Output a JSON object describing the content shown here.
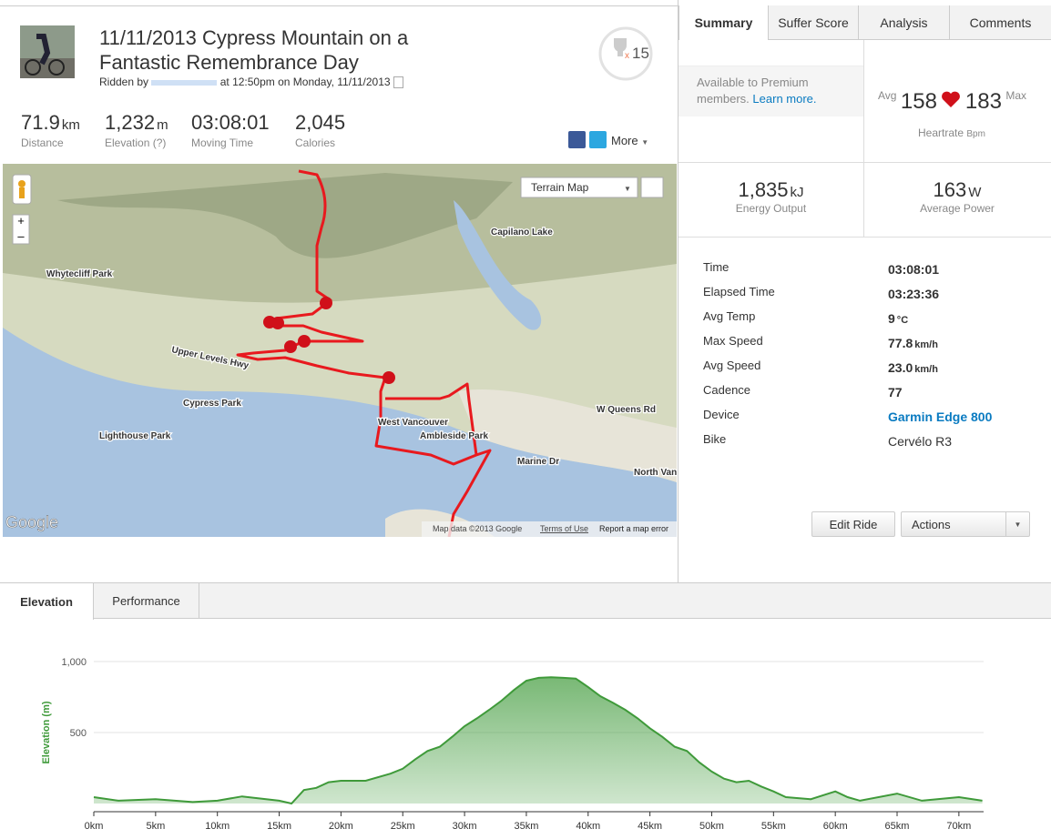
{
  "tabs": [
    "Summary",
    "Suffer Score",
    "Analysis",
    "Comments"
  ],
  "header": {
    "title": "11/11/2013 Cypress Mountain on a Fantastic Remembrance Day",
    "ridden_by": "Ridden by",
    "when": "at 12:50pm on Monday, 11/11/2013",
    "trophy_prefix": "x",
    "trophy_count": "15"
  },
  "stats": [
    {
      "value": "71.9",
      "unit": "km",
      "label": "Distance"
    },
    {
      "value": "1,232",
      "unit": "m",
      "label": "Elevation (?)"
    },
    {
      "value": "03:08:01",
      "unit": "",
      "label": "Moving Time"
    },
    {
      "value": "2,045",
      "unit": "",
      "label": "Calories"
    }
  ],
  "share_more": "More",
  "premium": {
    "text": "Available to Premium members.",
    "link": "Learn more."
  },
  "heartrate": {
    "avg_label": "Avg",
    "avg": "158",
    "max": "183",
    "max_label": "Max",
    "label": "Heartrate",
    "unit": "Bpm"
  },
  "power": [
    {
      "value": "1,835",
      "unit": "kJ",
      "label": "Energy Output"
    },
    {
      "value": "163",
      "unit": "W",
      "label": "Average Power"
    }
  ],
  "details": [
    {
      "label": "Time",
      "value": "03:08:01",
      "unit": ""
    },
    {
      "label": "Elapsed Time",
      "value": "03:23:36",
      "unit": ""
    },
    {
      "label": "Avg Temp",
      "value": "9",
      "unit": "°C"
    },
    {
      "label": "Max Speed",
      "value": "77.8",
      "unit": "km/h"
    },
    {
      "label": "Avg Speed",
      "value": "23.0",
      "unit": "km/h"
    },
    {
      "label": "Cadence",
      "value": "77",
      "unit": ""
    },
    {
      "label": "Device",
      "value": "Garmin Edge 800",
      "unit": ""
    },
    {
      "label": "Bike",
      "value": "Cervélo R3",
      "unit": ""
    }
  ],
  "buttons": {
    "edit": "Edit Ride",
    "actions": "Actions"
  },
  "map": {
    "type_selector": "Terrain Map",
    "labels": [
      "Whytecliff Park",
      "Cypress Park",
      "Lighthouse Park",
      "West Vancouver",
      "Ambleside Park",
      "North Vancouver",
      "Capilano Lake",
      "Upper Levels Hwy",
      "Marine Dr",
      "W Queens Rd"
    ],
    "google": "Google",
    "attribution": "Map data ©2013 Google",
    "terms": "Terms of Use",
    "report": "Report a map error"
  },
  "chart_tabs": [
    "Elevation",
    "Performance"
  ],
  "chart_data": {
    "type": "area",
    "y_label": "Elevation (m)",
    "color": "#3f9a3a",
    "grid": true,
    "x": [
      0,
      2,
      5,
      8,
      10,
      12,
      15,
      16,
      17,
      18,
      19,
      20,
      22,
      24,
      25,
      26,
      27,
      28,
      29,
      30,
      31,
      32,
      33,
      34,
      35,
      36,
      37,
      38,
      39,
      40,
      41,
      42,
      43,
      44,
      45,
      46,
      47,
      48,
      49,
      50,
      51,
      52,
      53,
      54,
      55,
      56,
      58,
      60,
      61,
      62,
      65,
      67,
      70,
      71.9
    ],
    "values": [
      45,
      20,
      30,
      10,
      20,
      50,
      20,
      0,
      95,
      110,
      150,
      160,
      160,
      210,
      245,
      310,
      370,
      400,
      470,
      545,
      600,
      660,
      725,
      800,
      865,
      885,
      890,
      885,
      880,
      820,
      755,
      710,
      660,
      600,
      530,
      470,
      400,
      370,
      290,
      225,
      175,
      150,
      160,
      120,
      85,
      45,
      30,
      85,
      45,
      20,
      70,
      20,
      45,
      20
    ],
    "xlim": [
      0,
      72
    ],
    "ylim": [
      0,
      1000
    ],
    "xticks": [
      {
        "value": 0,
        "label": "0km"
      },
      {
        "value": 5,
        "label": "5km"
      },
      {
        "value": 10,
        "label": "10km"
      },
      {
        "value": 15,
        "label": "15km"
      },
      {
        "value": 20,
        "label": "20km"
      },
      {
        "value": 25,
        "label": "25km"
      },
      {
        "value": 30,
        "label": "30km"
      },
      {
        "value": 35,
        "label": "35km"
      },
      {
        "value": 40,
        "label": "40km"
      },
      {
        "value": 45,
        "label": "45km"
      },
      {
        "value": 50,
        "label": "50km"
      },
      {
        "value": 55,
        "label": "55km"
      },
      {
        "value": 60,
        "label": "60km"
      },
      {
        "value": 65,
        "label": "65km"
      },
      {
        "value": 70,
        "label": "70km"
      }
    ],
    "yticks": [
      {
        "value": 1000,
        "label": "1,000"
      },
      500
    ]
  }
}
